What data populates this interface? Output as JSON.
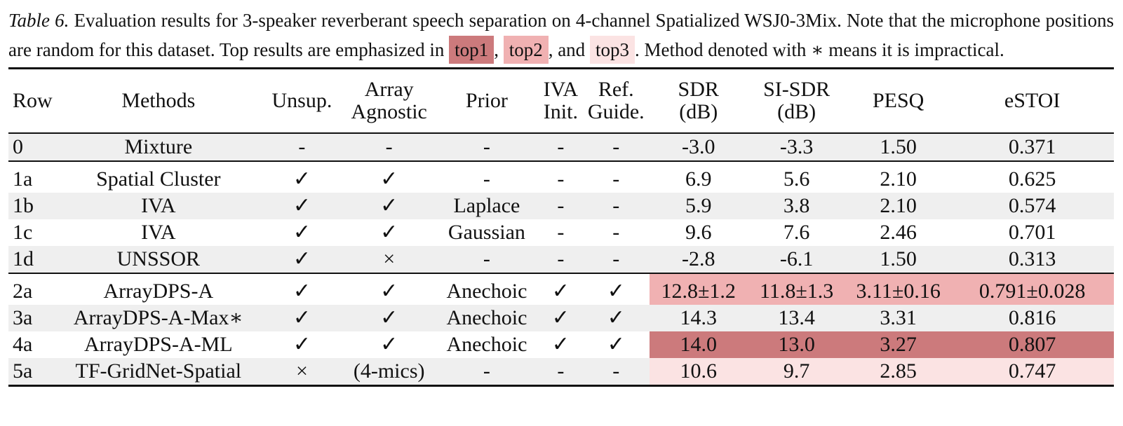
{
  "caption": {
    "label": "Table 6.",
    "text1": " Evaluation results for 3-speaker reverberant speech separation on 4-channel Spatialized WSJ0-3Mix. Note that the microphone positions are random for this dataset. Top results are emphasized in ",
    "top1": "top1",
    "sep1": ",",
    "top2": "top2",
    "sep2": ", and",
    "top3": "top3",
    "text2": ". Method denoted with ∗ means it is impractical."
  },
  "columns": {
    "row": "Row",
    "methods": "Methods",
    "unsup": "Unsup.",
    "array_l1": "Array",
    "array_l2": "Agnostic",
    "prior": "Prior",
    "iva_l1": "IVA",
    "iva_l2": "Init.",
    "ref_l1": "Ref.",
    "ref_l2": "Guide.",
    "sdr_l1": "SDR",
    "sdr_l2": "(dB)",
    "sisdr_l1": "SI-SDR",
    "sisdr_l2": "(dB)",
    "pesq": "PESQ",
    "estoi": "eSTOI"
  },
  "rows": [
    {
      "row": "0",
      "method": "Mixture",
      "unsup": "-",
      "array": "-",
      "prior": "-",
      "iva": "-",
      "ref": "-",
      "sdr": "-3.0",
      "sisdr": "-3.3",
      "pesq": "1.50",
      "estoi": "0.371"
    },
    {
      "row": "1a",
      "method": "Spatial Cluster",
      "unsup": "✓",
      "array": "✓",
      "prior": "-",
      "iva": "-",
      "ref": "-",
      "sdr": "6.9",
      "sisdr": "5.6",
      "pesq": "2.10",
      "estoi": "0.625"
    },
    {
      "row": "1b",
      "method": "IVA",
      "unsup": "✓",
      "array": "✓",
      "prior": "Laplace",
      "iva": "-",
      "ref": "-",
      "sdr": "5.9",
      "sisdr": "3.8",
      "pesq": "2.10",
      "estoi": "0.574"
    },
    {
      "row": "1c",
      "method": "IVA",
      "unsup": "✓",
      "array": "✓",
      "prior": "Gaussian",
      "iva": "-",
      "ref": "-",
      "sdr": "9.6",
      "sisdr": "7.6",
      "pesq": "2.46",
      "estoi": "0.701"
    },
    {
      "row": "1d",
      "method": "UNSSOR",
      "unsup": "✓",
      "array": "×",
      "prior": "-",
      "iva": "-",
      "ref": "-",
      "sdr": "-2.8",
      "sisdr": "-6.1",
      "pesq": "1.50",
      "estoi": "0.313"
    },
    {
      "row": "2a",
      "method": "ArrayDPS-A",
      "unsup": "✓",
      "array": "✓",
      "prior": "Anechoic",
      "iva": "✓",
      "ref": "✓",
      "sdr": "12.8±1.2",
      "sisdr": "11.8±1.3",
      "pesq": "3.11±0.16",
      "estoi": "0.791±0.028"
    },
    {
      "row": "3a",
      "method": "ArrayDPS-A-Max∗",
      "unsup": "✓",
      "array": "✓",
      "prior": "Anechoic",
      "iva": "✓",
      "ref": "✓",
      "sdr": "14.3",
      "sisdr": "13.4",
      "pesq": "3.31",
      "estoi": "0.816"
    },
    {
      "row": "4a",
      "method": "ArrayDPS-A-ML",
      "unsup": "✓",
      "array": "✓",
      "prior": "Anechoic",
      "iva": "✓",
      "ref": "✓",
      "sdr": "14.0",
      "sisdr": "13.0",
      "pesq": "3.27",
      "estoi": "0.807"
    },
    {
      "row": "5a",
      "method": "TF-GridNet-Spatial",
      "unsup": "×",
      "array": "(4-mics)",
      "prior": "-",
      "iva": "-",
      "ref": "-",
      "sdr": "10.6",
      "sisdr": "9.7",
      "pesq": "2.85",
      "estoi": "0.747"
    }
  ]
}
